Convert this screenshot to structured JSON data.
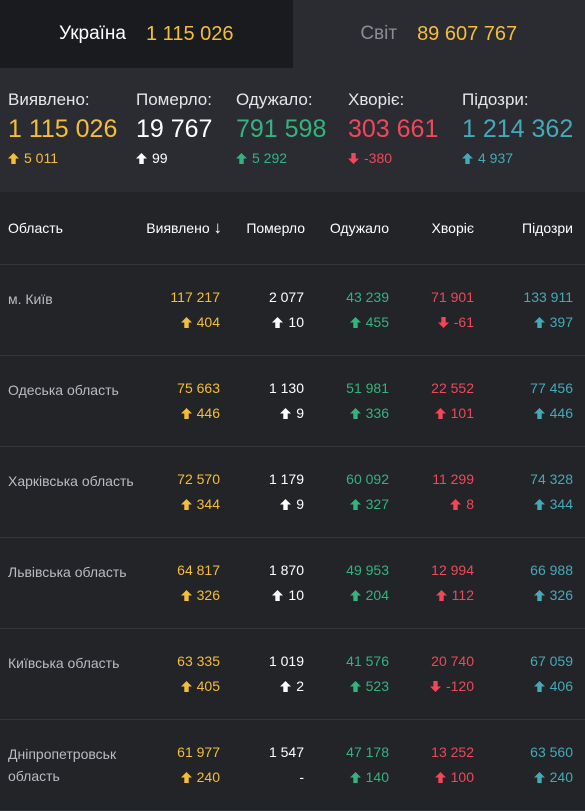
{
  "tabs": [
    {
      "name": "Україна",
      "value": "1 115 026"
    },
    {
      "name": "Світ",
      "value": "89 607 767"
    }
  ],
  "summary": [
    {
      "label": "Виявлено:",
      "value": "1 115 026",
      "delta": "5 011",
      "direction": "up",
      "color": "#f5be3a"
    },
    {
      "label": "Померло:",
      "value": "19 767",
      "delta": "99",
      "direction": "up",
      "color": "#ffffff"
    },
    {
      "label": "Одужало:",
      "value": "791 598",
      "delta": "5 292",
      "direction": "up",
      "color": "#35b37e"
    },
    {
      "label": "Хворіє:",
      "value": "303 661",
      "delta": "-380",
      "direction": "down",
      "color": "#f0475a"
    },
    {
      "label": "Підозри:",
      "value": "1 214 362",
      "delta": "4 937",
      "direction": "up",
      "color": "#45aab8"
    }
  ],
  "table": {
    "headers": {
      "region": "Область",
      "detected": "Виявлено",
      "died": "Померло",
      "recovered": "Одужало",
      "sick": "Хворіє",
      "suspected": "Підозри"
    },
    "sort_indicator": "↓",
    "rows": [
      {
        "region": "м. Київ",
        "detected": {
          "value": "117 217",
          "delta": "404",
          "dir": "up"
        },
        "died": {
          "value": "2 077",
          "delta": "10",
          "dir": "up"
        },
        "recovered": {
          "value": "43 239",
          "delta": "455",
          "dir": "up"
        },
        "sick": {
          "value": "71 901",
          "delta": "-61",
          "dir": "down"
        },
        "suspected": {
          "value": "133 911",
          "delta": "397",
          "dir": "up"
        }
      },
      {
        "region": "Одеська область",
        "detected": {
          "value": "75 663",
          "delta": "446",
          "dir": "up"
        },
        "died": {
          "value": "1 130",
          "delta": "9",
          "dir": "up"
        },
        "recovered": {
          "value": "51 981",
          "delta": "336",
          "dir": "up"
        },
        "sick": {
          "value": "22 552",
          "delta": "101",
          "dir": "up"
        },
        "suspected": {
          "value": "77 456",
          "delta": "446",
          "dir": "up"
        }
      },
      {
        "region": "Харківська область",
        "detected": {
          "value": "72 570",
          "delta": "344",
          "dir": "up"
        },
        "died": {
          "value": "1 179",
          "delta": "9",
          "dir": "up"
        },
        "recovered": {
          "value": "60 092",
          "delta": "327",
          "dir": "up"
        },
        "sick": {
          "value": "11 299",
          "delta": "8",
          "dir": "up"
        },
        "suspected": {
          "value": "74 328",
          "delta": "344",
          "dir": "up"
        }
      },
      {
        "region": "Львівська область",
        "detected": {
          "value": "64 817",
          "delta": "326",
          "dir": "up"
        },
        "died": {
          "value": "1 870",
          "delta": "10",
          "dir": "up"
        },
        "recovered": {
          "value": "49 953",
          "delta": "204",
          "dir": "up"
        },
        "sick": {
          "value": "12 994",
          "delta": "112",
          "dir": "up"
        },
        "suspected": {
          "value": "66 988",
          "delta": "326",
          "dir": "up"
        }
      },
      {
        "region": "Київська область",
        "detected": {
          "value": "63 335",
          "delta": "405",
          "dir": "up"
        },
        "died": {
          "value": "1 019",
          "delta": "2",
          "dir": "up"
        },
        "recovered": {
          "value": "41 576",
          "delta": "523",
          "dir": "up"
        },
        "sick": {
          "value": "20 740",
          "delta": "-120",
          "dir": "down"
        },
        "suspected": {
          "value": "67 059",
          "delta": "406",
          "dir": "up"
        }
      },
      {
        "region": "Дніпропетровськ область",
        "detected": {
          "value": "61 977",
          "delta": "240",
          "dir": "up"
        },
        "died": {
          "value": "1 547",
          "delta": "-",
          "dir": "none"
        },
        "recovered": {
          "value": "47 178",
          "delta": "140",
          "dir": "up"
        },
        "sick": {
          "value": "13 252",
          "delta": "100",
          "dir": "up"
        },
        "suspected": {
          "value": "63 560",
          "delta": "240",
          "dir": "up"
        }
      }
    ]
  },
  "colors": {
    "detected": "#f5be3a",
    "died": "#ffffff",
    "recovered": "#35b37e",
    "sick": "#f0475a",
    "suspected": "#45aab8"
  }
}
